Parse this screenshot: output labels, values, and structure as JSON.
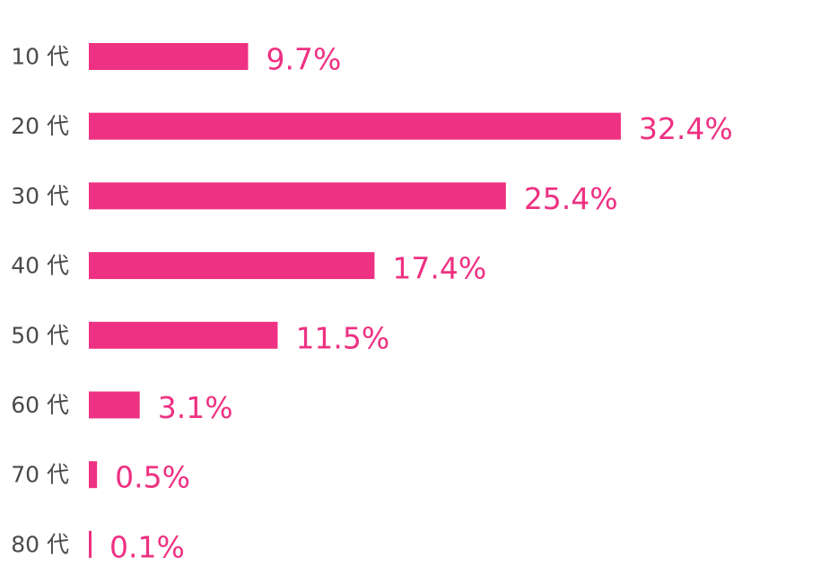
{
  "chart_data": {
    "type": "bar",
    "orientation": "horizontal",
    "categories": [
      "10 代",
      "20 代",
      "30 代",
      "40 代",
      "50 代",
      "60 代",
      "70 代",
      "80 代"
    ],
    "values": [
      9.7,
      32.4,
      25.4,
      17.4,
      11.5,
      3.1,
      0.5,
      0.1
    ],
    "value_labels": [
      "9.7%",
      "32.4%",
      "25.4%",
      "17.4%",
      "11.5%",
      "3.1%",
      "0.5%",
      "0.1%"
    ],
    "unit": "%",
    "title": "",
    "xlabel": "",
    "ylabel": "",
    "grid": false,
    "legend": "none",
    "bar_color": "#ee3182",
    "label_color": "#ee3182",
    "category_color": "#4a4a4a"
  }
}
